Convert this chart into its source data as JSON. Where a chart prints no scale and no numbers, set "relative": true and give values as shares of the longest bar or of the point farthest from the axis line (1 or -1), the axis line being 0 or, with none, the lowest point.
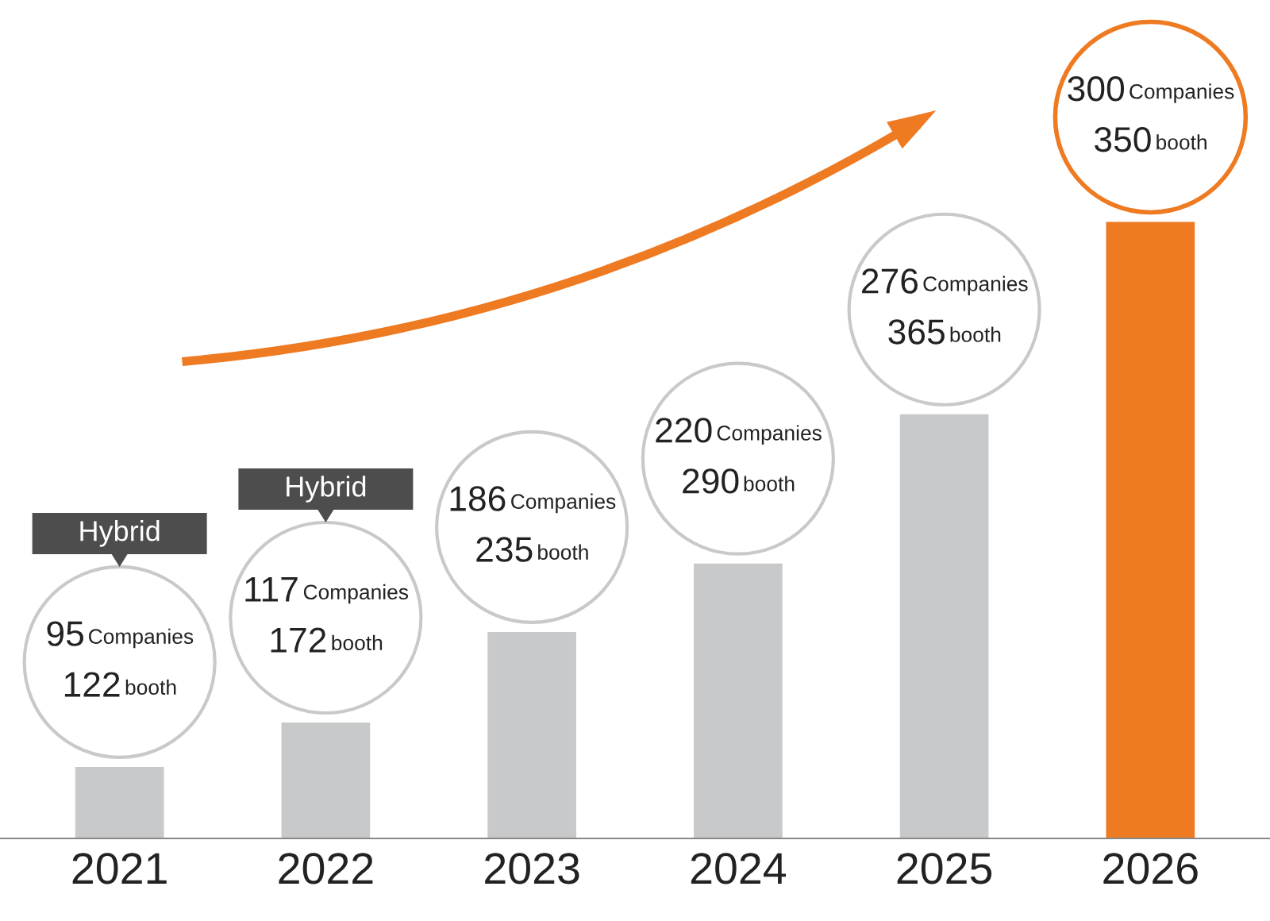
{
  "chart_data": {
    "type": "bar",
    "relative": true,
    "categories": [
      "2021",
      "2022",
      "2023",
      "2024",
      "2025",
      "2026"
    ],
    "values": [
      0.116,
      0.188,
      0.335,
      0.446,
      0.688,
      1
    ],
    "colors": [
      "#c8c9ca",
      "#c8c9ca",
      "#c8c9ca",
      "#c8c9ca",
      "#c8c9ca",
      "#ee7a22"
    ],
    "annotations": [
      "Hybrid",
      "Hybrid",
      "95 Companies",
      "122 booth",
      "117 Companies",
      "172 booth",
      "186 Companies",
      "235 booth",
      "220 Companies",
      "290 booth",
      "276 Companies",
      "365 booth",
      "300 Companies",
      "350 booth"
    ],
    "grid": false,
    "legend": false
  }
}
